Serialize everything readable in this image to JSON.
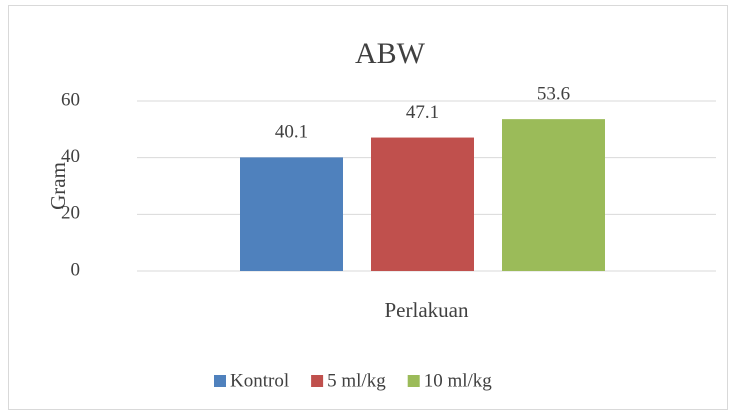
{
  "chart_data": {
    "type": "bar",
    "title": "ABW",
    "y_label": "Gram",
    "x_label": "Perlakuan",
    "categories": [
      "Perlakuan"
    ],
    "series": [
      {
        "name": "Kontrol",
        "color": "#4f81bd",
        "values": [
          40.1
        ]
      },
      {
        "name": "5 ml/kg",
        "color": "#c0504d",
        "values": [
          47.1
        ]
      },
      {
        "name": "10 ml/kg",
        "color": "#9bbb59",
        "values": [
          53.6
        ]
      }
    ],
    "ylim": [
      0,
      60
    ],
    "yticks": [
      0,
      20,
      40,
      60
    ],
    "grid": true,
    "legend": "bottom"
  }
}
